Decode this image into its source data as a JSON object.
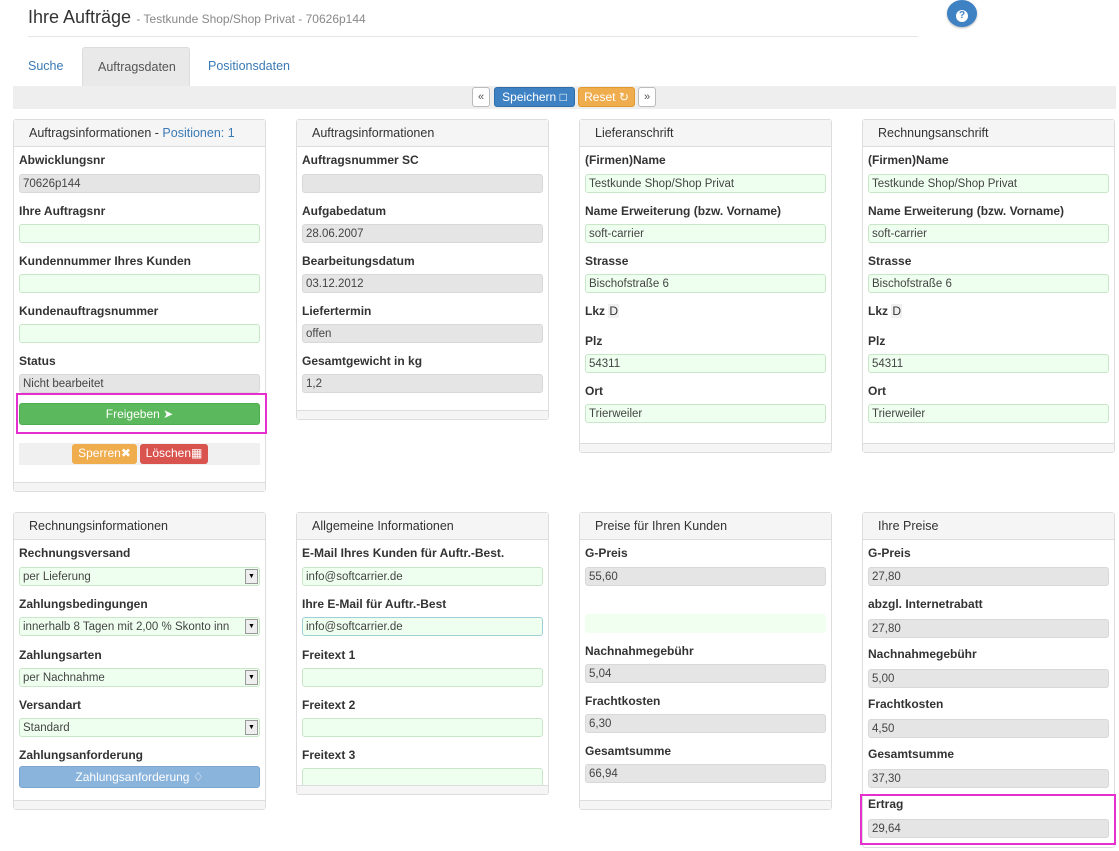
{
  "header": {
    "title": "Ihre Aufträge",
    "subtitle": "- Testkunde Shop/Shop Privat - 70626p144"
  },
  "tabs": [
    {
      "label": "Suche"
    },
    {
      "label": "Auftragsdaten"
    },
    {
      "label": "Positionsdaten"
    }
  ],
  "toolbar": {
    "prev": "«",
    "save": "Speichern",
    "reset": "Reset",
    "next": "»"
  },
  "auftrag": {
    "title": "Auftragsinformationen",
    "title_sep": " - ",
    "positions": "Positionen: 1",
    "abwicklungsnr_label": "Abwicklungsnr",
    "abwicklungsnr": "70626p144",
    "ihre_auftragsnr_label": "Ihre Auftragsnr",
    "ihre_auftragsnr": "",
    "kundennummer_label": "Kundennummer Ihres Kunden",
    "kundennummer": "",
    "kundenauftrag_label": "Kundenauftragsnummer",
    "kundenauftrag": "",
    "status_label": "Status",
    "status": "Nicht bearbeitet",
    "freigeben": "Freigeben",
    "sperren": "Sperren",
    "loeschen": "Löschen"
  },
  "auftrag2": {
    "title": "Auftragsinformationen",
    "auftragsnummer_sc_label": "Auftragsnummer SC",
    "auftragsnummer_sc": "",
    "aufgabedatum_label": "Aufgabedatum",
    "aufgabedatum": "28.06.2007",
    "bearbeitungsdatum_label": "Bearbeitungsdatum",
    "bearbeitungsdatum": "03.12.2012",
    "liefertermin_label": "Liefertermin",
    "liefertermin": "offen",
    "gewicht_label": "Gesamtgewicht in kg",
    "gewicht": "1,2"
  },
  "liefer": {
    "title": "Lieferanschrift",
    "name_label": "(Firmen)Name",
    "name": "Testkunde Shop/Shop Privat",
    "ext_label": "Name Erweiterung (bzw. Vorname)",
    "ext": "soft-carrier",
    "strasse_label": "Strasse",
    "strasse": "Bischofstraße 6",
    "lkz_label": "Lkz",
    "lkz": "D",
    "plz_label": "Plz",
    "plz": "54311",
    "ort_label": "Ort",
    "ort": "Trierweiler"
  },
  "rechnung_addr": {
    "title": "Rechnungsanschrift",
    "name_label": "(Firmen)Name",
    "name": "Testkunde Shop/Shop Privat",
    "ext_label": "Name Erweiterung (bzw. Vorname)",
    "ext": "soft-carrier",
    "strasse_label": "Strasse",
    "strasse": "Bischofstraße 6",
    "lkz_label": "Lkz",
    "lkz": "D",
    "plz_label": "Plz",
    "plz": "54311",
    "ort_label": "Ort",
    "ort": "Trierweiler"
  },
  "rechnungsinfo": {
    "title": "Rechnungsinformationen",
    "versand_label": "Rechnungsversand",
    "versand": "per Lieferung",
    "bedingungen_label": "Zahlungsbedingungen",
    "bedingungen": "innerhalb 8 Tagen mit 2,00 % Skonto inn",
    "arten_label": "Zahlungsarten",
    "arten": "per Nachnahme",
    "versandart_label": "Versandart",
    "versandart": "Standard",
    "anforderung_label": "Zahlungsanforderung",
    "anforderung_btn": "Zahlungsanforderung"
  },
  "allgemein": {
    "title": "Allgemeine Informationen",
    "email_kunde_label": "E-Mail Ihres Kunden für Auftr.-Best.",
    "email_kunde": "info@softcarrier.de",
    "email_ihre_label": "Ihre E-Mail für Auftr.-Best",
    "email_ihre": "info@softcarrier.de",
    "freitext1_label": "Freitext 1",
    "freitext1": "",
    "freitext2_label": "Freitext 2",
    "freitext2": "",
    "freitext3_label": "Freitext 3",
    "freitext3": ""
  },
  "preise_kunden": {
    "title": "Preise für Ihren Kunden",
    "gpreis_label": "G-Preis",
    "gpreis": "55,60",
    "nachnahme_label": "Nachnahmegebühr",
    "nachnahme": "5,04",
    "fracht_label": "Frachtkosten",
    "fracht": "6,30",
    "gesamt_label": "Gesamtsumme",
    "gesamt": "66,94"
  },
  "ihre_preise": {
    "title": "Ihre Preise",
    "gpreis_label": "G-Preis",
    "gpreis": "27,80",
    "rabatt_label": "abzgl. Internetrabatt",
    "rabatt": "27,80",
    "nachnahme_label": "Nachnahmegebühr",
    "nachnahme": "5,00",
    "fracht_label": "Frachtkosten",
    "fracht": "4,50",
    "gesamt_label": "Gesamtsumme",
    "gesamt": "37,30",
    "ertrag_label": "Ertrag",
    "ertrag": "29,64"
  },
  "colors": {
    "highlight": "#e62fcf",
    "primary": "#3f82c4",
    "success": "#5cb85c",
    "warning": "#f0ad4e",
    "danger": "#d9534f"
  }
}
